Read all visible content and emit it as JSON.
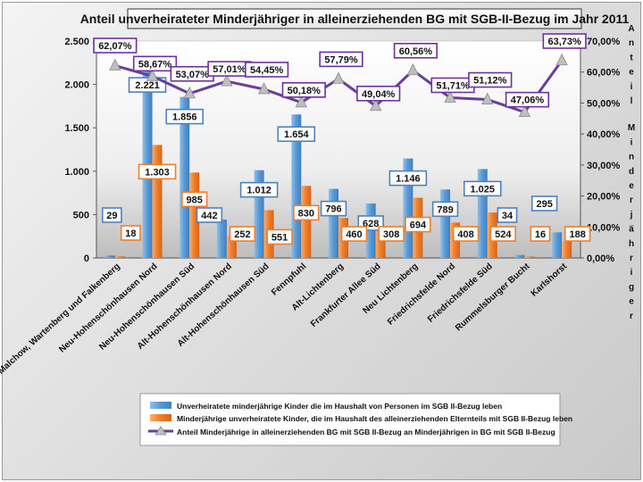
{
  "chart_data": {
    "type": "bar",
    "title": "Anteil unverheirateter Minderjähriger in alleinerziehenden BG mit SGB-II-Bezug im Jahr 2011",
    "categories": [
      "Malchow, Wartenberg und Falkenberg",
      "Neu-Hohenschönhausen Nord",
      "Neu-Hohenschönhausen Süd",
      "Alt-Hohenschönhausen Nord",
      "Alt-Hohenschönhausen Süd",
      "Fennpfuhl",
      "Alt-Lichtenberg",
      "Frankfurter Allee Süd",
      "Neu Lichtenberg",
      "Friedrichsfelde Nord",
      "Friedrichsfelde Süd",
      "Rummelsburger Bucht",
      "Karlshorst"
    ],
    "series": [
      {
        "name": "Unverheiratete minderjährige Kinder die im Haushalt von Personen im SGB II-Bezug leben",
        "color": "#5b9bd5",
        "values": [
          29,
          2221,
          1856,
          442,
          1012,
          1654,
          796,
          628,
          1146,
          789,
          1025,
          34,
          295
        ],
        "labels": [
          "29",
          "2.221",
          "1.856",
          "442",
          "1.012",
          "1.654",
          "796",
          "628",
          "1.146",
          "789",
          "1.025",
          "34",
          "295"
        ]
      },
      {
        "name": "Minderjährige unverheiratete Kinder, die im Haushalt des alleinerziehenden Elternteils mit SGB II-Bezug leben",
        "color": "#f07f2b",
        "values": [
          18,
          1303,
          985,
          252,
          551,
          830,
          460,
          308,
          694,
          408,
          524,
          16,
          188
        ],
        "labels": [
          "18",
          "1.303",
          "985",
          "252",
          "551",
          "830",
          "460",
          "308",
          "694",
          "408",
          "524",
          "16",
          "188"
        ]
      },
      {
        "name": "Anteil Minderjährige in alleinerziehenden BG mit SGB II-Bezug an Minderjährigen in BG mit SGB II-Bezug",
        "color": "#6a3d9a",
        "axis": "right",
        "values": [
          62.07,
          58.67,
          53.07,
          57.01,
          54.45,
          50.18,
          57.79,
          49.04,
          60.56,
          51.71,
          51.12,
          47.06,
          63.73
        ],
        "labels": [
          "62,07%",
          "58,67%",
          "53,07%",
          "57,01%",
          "54,45%",
          "50,18%",
          "57,79%",
          "49,04%",
          "60,56%",
          "51,71%",
          "51,12%",
          "47,06%",
          "63,73%"
        ]
      }
    ],
    "y_left": {
      "range": [
        0,
        2500
      ],
      "ticks": [
        0,
        500,
        1000,
        1500,
        2000,
        2500
      ],
      "tick_labels": [
        "0",
        "500",
        "1.000",
        "1.500",
        "2.000",
        "2.500"
      ]
    },
    "y_right": {
      "range": [
        0,
        70
      ],
      "ticks": [
        0,
        10,
        20,
        30,
        40,
        50,
        60,
        70
      ],
      "tick_labels": [
        "0,00%",
        "10,00%",
        "20,00%",
        "30,00%",
        "40,00%",
        "50,00%",
        "60,00%",
        "70,00%"
      ],
      "label": "Anteil Minderjähriger"
    },
    "legend": "bottom",
    "grid": false
  }
}
